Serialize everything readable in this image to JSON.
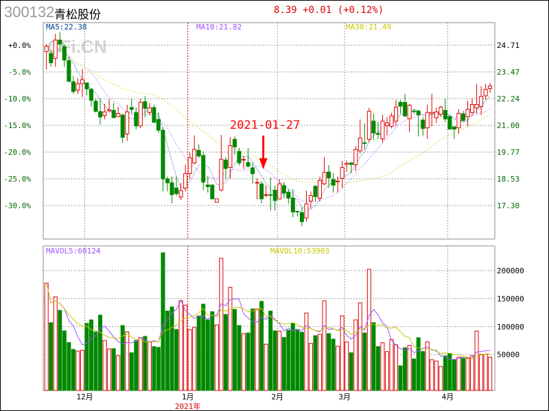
{
  "header": {
    "code": "300132",
    "name": "青松股份",
    "quote": "8.39 +0.01 (+0.12%)"
  },
  "watermark": "CFi.CN",
  "annotation": {
    "text": "2021-01-27",
    "index": 49,
    "color": "#ff0000"
  },
  "colors": {
    "up": "#dd0000",
    "down": "#008800",
    "ma5": "#003f8f",
    "ma10": "#a050ff",
    "ma30": "#c8c800",
    "grid": "#999999"
  },
  "chart_data": [
    {
      "type": "candlestick",
      "legend": {
        "ma5": "MA5:22.38",
        "ma10": "MA10:21.82",
        "ma30": "MA30:21.49"
      },
      "price_ticks": [
        "24.71",
        "23.47",
        "22.24",
        "21.00",
        "19.77",
        "18.53",
        "17.30"
      ],
      "pct_ticks": [
        "+0.0%",
        "-5.0%",
        "-10.0%",
        "-15.0%",
        "-20.0%",
        "-25.0%",
        "-30.0%"
      ],
      "months": [
        {
          "label": "12月",
          "index": 9
        },
        {
          "label": "1月",
          "index": 32,
          "year": "2021年"
        },
        {
          "label": "2月",
          "index": 52
        },
        {
          "label": "3月",
          "index": 67
        },
        {
          "label": "4月",
          "index": 90
        }
      ],
      "ohlc": [
        [
          24.41,
          24.76,
          23.58,
          24.66
        ],
        [
          24.33,
          24.47,
          23.71,
          23.9
        ],
        [
          24.1,
          25.24,
          23.71,
          24.95
        ],
        [
          24.95,
          25.31,
          24.39,
          24.76
        ],
        [
          24.65,
          24.76,
          23.71,
          24.02
        ],
        [
          24.0,
          24.18,
          22.99,
          23.04
        ],
        [
          23.02,
          23.28,
          22.46,
          22.57
        ],
        [
          22.64,
          23.18,
          22.46,
          22.93
        ],
        [
          22.93,
          23.6,
          22.31,
          23.12
        ],
        [
          22.97,
          22.97,
          22.39,
          22.69
        ],
        [
          22.68,
          22.68,
          21.86,
          22.16
        ],
        [
          22.12,
          22.23,
          21.6,
          21.65
        ],
        [
          21.64,
          22.25,
          21.05,
          21.39
        ],
        [
          21.46,
          22.0,
          21.28,
          21.63
        ],
        [
          21.68,
          22.21,
          21.6,
          21.73
        ],
        [
          21.7,
          22.04,
          21.36,
          21.36
        ],
        [
          21.41,
          21.86,
          21.41,
          21.56
        ],
        [
          21.48,
          21.56,
          20.19,
          20.45
        ],
        [
          20.61,
          21.95,
          20.29,
          21.63
        ],
        [
          21.83,
          22.23,
          21.54,
          21.74
        ],
        [
          21.6,
          21.83,
          20.82,
          20.98
        ],
        [
          20.98,
          22.23,
          20.88,
          22.07
        ],
        [
          22.1,
          22.36,
          21.39,
          21.79
        ],
        [
          21.6,
          22.04,
          21.47,
          21.82
        ],
        [
          21.83,
          21.95,
          21.14,
          21.14
        ],
        [
          21.28,
          21.6,
          20.65,
          20.78
        ],
        [
          20.78,
          20.91,
          17.95,
          18.53
        ],
        [
          18.53,
          18.64,
          17.95,
          18.35
        ],
        [
          18.35,
          18.64,
          17.4,
          17.8
        ],
        [
          18.11,
          18.64,
          17.74,
          17.85
        ],
        [
          17.69,
          18.35,
          17.56,
          17.99
        ],
        [
          18.1,
          19.19,
          17.95,
          18.78
        ],
        [
          18.78,
          19.75,
          18.53,
          19.51
        ],
        [
          19.27,
          20.54,
          19.19,
          19.89
        ],
        [
          19.85,
          20.12,
          19.49,
          19.59
        ],
        [
          19.61,
          19.8,
          18.01,
          18.38
        ],
        [
          18.25,
          18.64,
          17.9,
          18.17
        ],
        [
          18.25,
          18.25,
          17.58,
          17.61
        ],
        [
          17.45,
          17.61,
          17.45,
          17.61
        ],
        [
          18.01,
          20.56,
          17.95,
          19.44
        ],
        [
          19.4,
          19.54,
          18.53,
          19.01
        ],
        [
          19.06,
          20.46,
          18.53,
          20.07
        ],
        [
          20.36,
          20.49,
          19.64,
          20.01
        ],
        [
          19.8,
          19.96,
          19.15,
          19.27
        ],
        [
          19.4,
          19.59,
          18.98,
          19.43
        ],
        [
          19.29,
          19.96,
          19.06,
          19.12
        ],
        [
          19.04,
          19.27,
          18.3,
          18.77
        ],
        [
          18.35,
          18.56,
          17.58,
          18.37
        ],
        [
          18.3,
          18.43,
          17.4,
          17.61
        ],
        [
          17.79,
          18.22,
          17.69,
          17.8
        ],
        [
          17.8,
          18.59,
          17.06,
          17.78
        ],
        [
          18.01,
          18.22,
          17.06,
          17.53
        ],
        [
          17.6,
          18.51,
          17.6,
          18.3
        ],
        [
          18.22,
          18.38,
          17.64,
          17.88
        ],
        [
          17.92,
          18.06,
          17.38,
          17.64
        ],
        [
          17.64,
          18.06,
          16.76,
          17.0
        ],
        [
          17.03,
          17.03,
          16.79,
          17.0
        ],
        [
          16.97,
          17.21,
          16.34,
          16.55
        ],
        [
          16.72,
          17.99,
          16.55,
          17.37
        ],
        [
          17.51,
          17.95,
          17.14,
          17.76
        ],
        [
          18.19,
          18.24,
          17.48,
          17.71
        ],
        [
          17.64,
          18.64,
          17.48,
          18.46
        ],
        [
          18.3,
          19.54,
          18.24,
          18.83
        ],
        [
          18.85,
          19.17,
          18.11,
          18.58
        ],
        [
          18.5,
          18.8,
          17.9,
          18.24
        ],
        [
          18.39,
          18.64,
          17.9,
          18.43
        ],
        [
          18.56,
          19.36,
          18.11,
          19.06
        ],
        [
          19.2,
          19.38,
          18.85,
          19.25
        ],
        [
          19.27,
          19.3,
          18.8,
          19.2
        ],
        [
          19.19,
          20.03,
          18.9,
          19.89
        ],
        [
          19.83,
          21.28,
          19.7,
          20.42
        ],
        [
          20.2,
          21.09,
          19.89,
          20.17
        ],
        [
          20.36,
          21.81,
          20.22,
          21.66
        ],
        [
          21.2,
          21.54,
          20.33,
          20.65
        ],
        [
          20.63,
          21.17,
          20.38,
          20.59
        ],
        [
          20.38,
          21.49,
          20.22,
          21.2
        ],
        [
          20.99,
          21.38,
          20.54,
          21.12
        ],
        [
          20.96,
          21.59,
          20.86,
          21.44
        ],
        [
          21.2,
          22.18,
          20.96,
          21.85
        ],
        [
          22.07,
          22.18,
          21.54,
          21.89
        ],
        [
          22.07,
          22.46,
          21.39,
          21.44
        ],
        [
          21.31,
          21.99,
          20.7,
          21.94
        ],
        [
          21.67,
          21.76,
          21.54,
          21.65
        ],
        [
          21.67,
          21.7,
          20.49,
          21.49
        ],
        [
          21.25,
          21.38,
          20.52,
          20.86
        ],
        [
          20.89,
          21.96,
          20.38,
          21.6
        ],
        [
          21.54,
          22.46,
          20.96,
          21.6
        ],
        [
          21.36,
          21.83,
          21.12,
          21.63
        ],
        [
          21.52,
          21.91,
          21.39,
          21.85
        ],
        [
          21.7,
          22.23,
          21.15,
          21.3
        ],
        [
          21.41,
          21.49,
          20.83,
          20.83
        ],
        [
          20.94,
          20.94,
          20.38,
          20.83
        ],
        [
          20.89,
          21.75,
          20.61,
          21.56
        ],
        [
          21.54,
          21.67,
          21.17,
          21.23
        ],
        [
          21.41,
          22.14,
          20.96,
          21.75
        ],
        [
          21.6,
          22.26,
          21.47,
          21.97
        ],
        [
          21.81,
          22.92,
          21.54,
          21.97
        ],
        [
          21.88,
          22.81,
          21.49,
          22.34
        ],
        [
          22.37,
          22.92,
          22.18,
          22.67
        ],
        [
          22.7,
          22.97,
          22.51,
          22.83
        ]
      ]
    },
    {
      "type": "bar",
      "legend": {
        "mavol5": "MAVOL5:60124",
        "mavol10": "MAVOL10:53903"
      },
      "vol_ticks": [
        "200000",
        "150000",
        "100000",
        "50000"
      ],
      "volume": [
        177600,
        107000,
        153000,
        129000,
        92400,
        71600,
        59400,
        56500,
        57700,
        105800,
        112000,
        90400,
        120500,
        75300,
        60200,
        60600,
        48000,
        102000,
        90800,
        53300,
        75300,
        80200,
        82600,
        72400,
        64300,
        63000,
        231800,
        127800,
        135200,
        94800,
        146200,
        138400,
        94400,
        98500,
        119300,
        140100,
        112000,
        126600,
        103000,
        222000,
        121700,
        170200,
        130700,
        102000,
        87500,
        88700,
        131500,
        131500,
        145000,
        68700,
        127800,
        92400,
        92000,
        80600,
        93600,
        106200,
        94800,
        89900,
        124200,
        70000,
        83800,
        86300,
        146200,
        87500,
        77700,
        65100,
        119300,
        72800,
        53300,
        112000,
        142500,
        88700,
        202400,
        107000,
        64300,
        71200,
        55300,
        77300,
        67500,
        30000,
        62200,
        66300,
        42300,
        80200,
        55700,
        72800,
        41000,
        38600,
        28800,
        47600,
        52400,
        40200,
        45500,
        43500,
        43500,
        48000,
        92000,
        50400,
        50800,
        45500
      ]
    }
  ]
}
